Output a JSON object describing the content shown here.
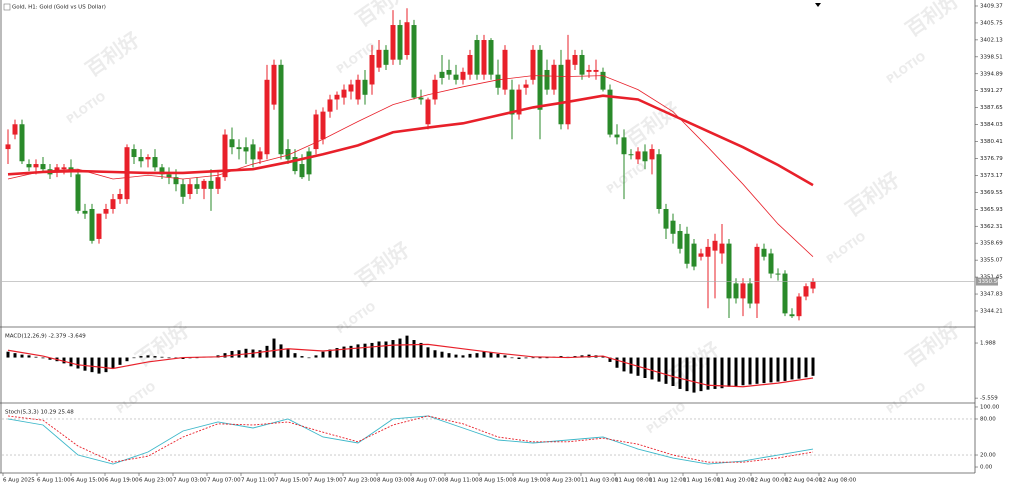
{
  "chart_data": [
    {
      "type": "candlestick",
      "title": "Gold, H1: Gold (Gold vs US Dollar)",
      "up_color": "#e8202a",
      "down_color": "#2a8a2a",
      "ylim": [
        3341.0,
        3410.65
      ],
      "yticks": [
        3409.37,
        3405.75,
        3402.13,
        3398.51,
        3394.89,
        3391.27,
        3387.65,
        3384.03,
        3380.41,
        3376.79,
        3373.17,
        3369.55,
        3365.93,
        3362.31,
        3358.69,
        3355.07,
        3351.45,
        3347.83,
        3344.21
      ],
      "current_price": {
        "value": 3350.5,
        "label": "3350.50"
      },
      "ohlc": [
        [
          3378.8,
          3383.0,
          3375.6,
          3379.8
        ],
        [
          3381.9,
          3385.1,
          3380.9,
          3384.1
        ],
        [
          3384.1,
          3385.1,
          3375.6,
          3376.2
        ],
        [
          3375.6,
          3376.6,
          3374.1,
          3374.9
        ],
        [
          3374.9,
          3376.6,
          3373.4,
          3375.6
        ],
        [
          3375.6,
          3377.1,
          3374.1,
          3374.5
        ],
        [
          3374.5,
          3375.6,
          3372.4,
          3373.4
        ],
        [
          3374.1,
          3375.6,
          3372.8,
          3374.9
        ],
        [
          3374.5,
          3375.6,
          3373.4,
          3374.9
        ],
        [
          3374.9,
          3376.6,
          3372.8,
          3374.1
        ],
        [
          3373.4,
          3374.5,
          3365.0,
          3365.6
        ],
        [
          3365.6,
          3367.1,
          3363.9,
          3365.0
        ],
        [
          3366.0,
          3367.1,
          3358.6,
          3359.2
        ],
        [
          3359.6,
          3365.0,
          3358.6,
          3365.0
        ],
        [
          3365.0,
          3367.1,
          3363.9,
          3366.0
        ],
        [
          3366.0,
          3369.2,
          3365.0,
          3368.1
        ],
        [
          3368.1,
          3370.3,
          3367.1,
          3369.2
        ],
        [
          3368.1,
          3379.8,
          3367.1,
          3379.2
        ],
        [
          3378.8,
          3379.8,
          3375.6,
          3377.1
        ],
        [
          3377.1,
          3378.8,
          3374.9,
          3376.2
        ],
        [
          3376.6,
          3377.7,
          3374.9,
          3377.1
        ],
        [
          3377.1,
          3378.8,
          3374.1,
          3374.9
        ],
        [
          3374.9,
          3375.6,
          3372.4,
          3373.4
        ],
        [
          3373.4,
          3374.9,
          3371.3,
          3372.8
        ],
        [
          3372.8,
          3374.5,
          3369.8,
          3371.3
        ],
        [
          3371.3,
          3372.4,
          3367.1,
          3368.6
        ],
        [
          3369.2,
          3372.4,
          3368.1,
          3371.3
        ],
        [
          3371.3,
          3372.8,
          3369.2,
          3370.3
        ],
        [
          3370.3,
          3372.4,
          3368.1,
          3372.0
        ],
        [
          3372.0,
          3374.5,
          3365.6,
          3370.3
        ],
        [
          3370.3,
          3374.1,
          3369.2,
          3372.8
        ],
        [
          3372.8,
          3383.0,
          3372.0,
          3381.9
        ],
        [
          3380.9,
          3383.4,
          3377.7,
          3379.2
        ],
        [
          3379.2,
          3380.9,
          3376.6,
          3378.8
        ],
        [
          3379.2,
          3381.3,
          3375.6,
          3378.3
        ],
        [
          3379.8,
          3380.9,
          3374.9,
          3376.6
        ],
        [
          3376.6,
          3379.2,
          3375.6,
          3378.3
        ],
        [
          3377.7,
          3396.8,
          3376.6,
          3393.6
        ],
        [
          3388.3,
          3397.9,
          3387.2,
          3396.8
        ],
        [
          3396.8,
          3397.9,
          3376.6,
          3377.7
        ],
        [
          3378.8,
          3380.9,
          3375.6,
          3376.6
        ],
        [
          3377.1,
          3378.8,
          3373.4,
          3374.1
        ],
        [
          3375.6,
          3377.7,
          3372.4,
          3372.8
        ],
        [
          3378.3,
          3379.2,
          3372.0,
          3373.4
        ],
        [
          3378.8,
          3387.2,
          3377.7,
          3386.2
        ],
        [
          3380.9,
          3387.7,
          3379.8,
          3386.8
        ],
        [
          3386.8,
          3390.4,
          3385.5,
          3389.4
        ],
        [
          3389.4,
          3391.1,
          3387.2,
          3390.4
        ],
        [
          3389.8,
          3392.6,
          3388.3,
          3391.5
        ],
        [
          3391.1,
          3393.6,
          3389.4,
          3392.6
        ],
        [
          3389.4,
          3394.7,
          3388.3,
          3393.6
        ],
        [
          3393.6,
          3395.7,
          3388.3,
          3390.4
        ],
        [
          3392.6,
          3401.0,
          3390.4,
          3398.9
        ],
        [
          3396.2,
          3402.1,
          3395.3,
          3400.0
        ],
        [
          3400.0,
          3401.0,
          3395.7,
          3396.8
        ],
        [
          3397.9,
          3408.5,
          3396.8,
          3405.3
        ],
        [
          3405.3,
          3406.4,
          3396.8,
          3397.9
        ],
        [
          3398.9,
          3408.9,
          3397.9,
          3405.9
        ],
        [
          3405.3,
          3406.4,
          3389.4,
          3389.8
        ],
        [
          3389.8,
          3391.5,
          3388.3,
          3389.4
        ],
        [
          3384.1,
          3389.8,
          3383.0,
          3389.4
        ],
        [
          3389.4,
          3394.7,
          3388.3,
          3393.6
        ],
        [
          3395.3,
          3398.9,
          3392.6,
          3394.0
        ],
        [
          3395.7,
          3397.9,
          3393.6,
          3394.7
        ],
        [
          3394.7,
          3396.8,
          3392.6,
          3393.6
        ],
        [
          3393.6,
          3396.2,
          3392.6,
          3395.3
        ],
        [
          3394.7,
          3400.0,
          3393.6,
          3398.9
        ],
        [
          3402.1,
          3403.2,
          3393.6,
          3394.7
        ],
        [
          3394.7,
          3403.2,
          3393.6,
          3402.1
        ],
        [
          3402.1,
          3402.5,
          3393.6,
          3394.7
        ],
        [
          3394.7,
          3397.9,
          3390.4,
          3391.9
        ],
        [
          3391.5,
          3401.0,
          3390.4,
          3400.0
        ],
        [
          3391.5,
          3393.6,
          3380.9,
          3386.2
        ],
        [
          3386.2,
          3392.6,
          3385.1,
          3391.5
        ],
        [
          3391.9,
          3393.6,
          3390.4,
          3392.6
        ],
        [
          3393.6,
          3401.0,
          3392.6,
          3400.0
        ],
        [
          3400.0,
          3401.0,
          3380.9,
          3387.2
        ],
        [
          3395.7,
          3397.9,
          3390.4,
          3391.5
        ],
        [
          3391.5,
          3397.9,
          3390.4,
          3396.8
        ],
        [
          3396.8,
          3400.0,
          3383.0,
          3384.1
        ],
        [
          3384.1,
          3403.2,
          3383.0,
          3397.9
        ],
        [
          3396.8,
          3400.0,
          3395.7,
          3398.9
        ],
        [
          3398.9,
          3400.0,
          3393.6,
          3394.7
        ],
        [
          3395.3,
          3396.8,
          3394.0,
          3395.7
        ],
        [
          3395.3,
          3397.9,
          3393.6,
          3395.7
        ],
        [
          3395.3,
          3396.2,
          3391.1,
          3391.5
        ],
        [
          3391.5,
          3392.6,
          3381.3,
          3381.9
        ],
        [
          3381.9,
          3384.1,
          3379.8,
          3381.3
        ],
        [
          3381.3,
          3383.0,
          3368.1,
          3377.7
        ],
        [
          3377.7,
          3378.8,
          3376.6,
          3377.5
        ],
        [
          3376.6,
          3379.2,
          3375.6,
          3378.3
        ],
        [
          3378.3,
          3379.8,
          3374.5,
          3376.2
        ],
        [
          3376.6,
          3379.8,
          3373.4,
          3378.8
        ],
        [
          3377.7,
          3378.8,
          3365.0,
          3366.0
        ],
        [
          3366.0,
          3367.1,
          3359.6,
          3361.8
        ],
        [
          3363.5,
          3365.0,
          3358.6,
          3360.7
        ],
        [
          3361.3,
          3362.8,
          3356.5,
          3357.5
        ],
        [
          3360.7,
          3362.2,
          3353.3,
          3354.3
        ],
        [
          3358.6,
          3359.6,
          3352.9,
          3353.7
        ],
        [
          3355.8,
          3357.5,
          3355.0,
          3356.5
        ],
        [
          3355.8,
          3359.6,
          3344.8,
          3357.9
        ],
        [
          3357.1,
          3360.7,
          3346.9,
          3359.2
        ],
        [
          3356.5,
          3362.8,
          3354.3,
          3358.6
        ],
        [
          3358.6,
          3359.6,
          3342.7,
          3346.9
        ],
        [
          3350.1,
          3351.2,
          3345.8,
          3346.9
        ],
        [
          3346.9,
          3351.2,
          3343.1,
          3350.1
        ],
        [
          3350.1,
          3351.2,
          3344.8,
          3345.8
        ],
        [
          3345.8,
          3358.6,
          3342.7,
          3357.9
        ],
        [
          3357.5,
          3358.6,
          3355.0,
          3355.8
        ],
        [
          3356.5,
          3357.5,
          3351.2,
          3352.2
        ],
        [
          3352.2,
          3353.3,
          3350.7,
          3352.0
        ],
        [
          3352.2,
          3352.9,
          3343.1,
          3343.7
        ],
        [
          3343.5,
          3344.8,
          3342.7,
          3343.1
        ],
        [
          3343.1,
          3348.0,
          3342.2,
          3347.3
        ],
        [
          3347.3,
          3350.1,
          3346.5,
          3349.5
        ],
        [
          3349.0,
          3351.2,
          3348.0,
          3350.5
        ]
      ],
      "series": [
        {
          "color": "#e8202a",
          "width": 0.8,
          "x": [
            0,
            5,
            10,
            15,
            20,
            25,
            30,
            35,
            40,
            45,
            50,
            55,
            60,
            65,
            70,
            75,
            80,
            85,
            90,
            95,
            100,
            105,
            110,
            115
          ],
          "values": [
            3372.4,
            3374.1,
            3374.5,
            3372.4,
            3373.2,
            3372.4,
            3373.2,
            3375.6,
            3377.5,
            3380.9,
            3384.7,
            3388.3,
            3390.4,
            3392.1,
            3393.6,
            3394.5,
            3394.3,
            3394.5,
            3391.5,
            3386.8,
            3379.2,
            3371.3,
            3362.8,
            3355.8
          ]
        },
        {
          "color": "#e8202a",
          "width": 2.6,
          "x": [
            0,
            5,
            10,
            15,
            20,
            25,
            30,
            35,
            40,
            45,
            50,
            55,
            60,
            65,
            70,
            75,
            80,
            85,
            90,
            95,
            100,
            105,
            110,
            115
          ],
          "values": [
            3373.4,
            3373.9,
            3374.1,
            3373.9,
            3373.7,
            3373.7,
            3374.1,
            3374.5,
            3376.0,
            3377.7,
            3379.6,
            3382.4,
            3383.4,
            3384.3,
            3386.0,
            3387.7,
            3388.9,
            3390.2,
            3389.4,
            3386.0,
            3382.6,
            3379.2,
            3375.4,
            3371.1
          ]
        }
      ]
    },
    {
      "type": "macd",
      "title": "MACD(12,26,9) -2.379 -3.649",
      "color": "#000000",
      "ylim": [
        -6.09,
        3.91
      ],
      "yticks": [
        1.988,
        -5.559
      ],
      "histogram": [
        0.8,
        0.6,
        0.4,
        0.3,
        0.1,
        -0.1,
        -0.3,
        -0.5,
        -0.8,
        -1.2,
        -1.5,
        -1.8,
        -2.0,
        -2.2,
        -2.0,
        -1.5,
        -1.0,
        -0.5,
        0.0,
        0.2,
        0.3,
        0.2,
        0.1,
        0.0,
        -0.1,
        -0.2,
        -0.1,
        0.0,
        0.1,
        0.1,
        0.3,
        0.6,
        0.9,
        1.0,
        1.2,
        1.1,
        1.0,
        1.6,
        2.6,
        1.8,
        1.2,
        0.6,
        0.2,
        0.0,
        0.3,
        0.8,
        1.1,
        1.3,
        1.5,
        1.6,
        1.8,
        1.9,
        2.0,
        2.2,
        2.2,
        2.4,
        2.6,
        3.0,
        2.4,
        2.0,
        1.4,
        1.0,
        0.8,
        0.6,
        0.4,
        0.3,
        0.5,
        0.6,
        0.8,
        0.7,
        0.5,
        0.3,
        0.0,
        -0.2,
        -0.1,
        0.0,
        -0.1,
        0.0,
        0.1,
        0.2,
        0.1,
        0.2,
        0.3,
        0.4,
        0.3,
        0.2,
        -0.6,
        -1.4,
        -1.9,
        -2.2,
        -2.5,
        -2.8,
        -3.0,
        -3.3,
        -3.6,
        -3.9,
        -4.3,
        -4.6,
        -4.8,
        -4.6,
        -4.4,
        -4.3,
        -4.2,
        -4.0,
        -3.9,
        -3.8,
        -3.7,
        -3.6,
        -3.5,
        -3.4,
        -3.3,
        -3.2,
        -3.0,
        -2.9,
        -2.7,
        -2.5
      ],
      "signal": {
        "color": "#e8202a",
        "x": [
          0,
          5,
          10,
          15,
          20,
          25,
          30,
          35,
          40,
          45,
          50,
          55,
          60,
          65,
          70,
          75,
          80,
          85,
          90,
          95,
          100,
          105,
          110,
          115
        ],
        "values": [
          1.0,
          0.2,
          -1.0,
          -1.5,
          -0.6,
          0.0,
          0.1,
          0.6,
          1.2,
          0.9,
          1.3,
          1.7,
          1.8,
          1.2,
          0.6,
          0.1,
          0.0,
          0.2,
          -1.2,
          -2.6,
          -3.8,
          -4.0,
          -3.5,
          -2.8
        ]
      }
    },
    {
      "type": "stochastic",
      "title": "Stoch(5,3,3) 10.29 25.48",
      "ylim": [
        -8.3,
        103.3
      ],
      "yticks": [
        {
          "value": 100,
          "label": "100.00"
        },
        {
          "value": 80,
          "label": "80.00"
        },
        {
          "value": 20,
          "label": "20.00"
        },
        {
          "value": 0,
          "label": "0.00"
        }
      ],
      "levels": [
        80,
        20
      ],
      "main": {
        "color": "#3cb7c9",
        "x": [
          0,
          5,
          10,
          15,
          20,
          25,
          30,
          35,
          40,
          45,
          50,
          55,
          60,
          65,
          70,
          75,
          80,
          85,
          90,
          95,
          100,
          105,
          110,
          115
        ],
        "values": [
          80,
          70,
          20,
          5,
          25,
          60,
          75,
          65,
          80,
          50,
          40,
          80,
          85,
          65,
          45,
          40,
          45,
          50,
          30,
          15,
          5,
          10,
          20,
          30
        ]
      },
      "signal": {
        "color": "#e8202a",
        "x": [
          0,
          5,
          10,
          15,
          20,
          25,
          30,
          35,
          40,
          45,
          50,
          55,
          60,
          65,
          70,
          75,
          80,
          85,
          90,
          95,
          100,
          105,
          110,
          115
        ],
        "values": [
          85,
          78,
          35,
          8,
          18,
          50,
          72,
          70,
          75,
          58,
          42,
          70,
          85,
          72,
          50,
          42,
          42,
          48,
          38,
          20,
          8,
          8,
          15,
          25
        ]
      }
    }
  ],
  "time_axis": [
    "6 Aug 2025",
    "6 Aug 11:00",
    "6 Aug 15:00",
    "6 Aug 19:00",
    "6 Aug 23:00",
    "7 Aug 03:00",
    "7 Aug 07:00",
    "7 Aug 11:00",
    "7 Aug 15:00",
    "7 Aug 19:00",
    "7 Aug 23:00",
    "8 Aug 03:00",
    "8 Aug 07:00",
    "8 Aug 11:00",
    "8 Aug 15:00",
    "8 Aug 19:00",
    "8 Aug 23:00",
    "11 Aug 03:00",
    "11 Aug 08:00",
    "11 Aug 12:00",
    "11 Aug 16:00",
    "11 Aug 20:00",
    "12 Aug 00:00",
    "12 Aug 04:00",
    "12 Aug 08:00"
  ],
  "watermark": {
    "brand": "PLOTIO",
    "chinese": "百利好"
  }
}
